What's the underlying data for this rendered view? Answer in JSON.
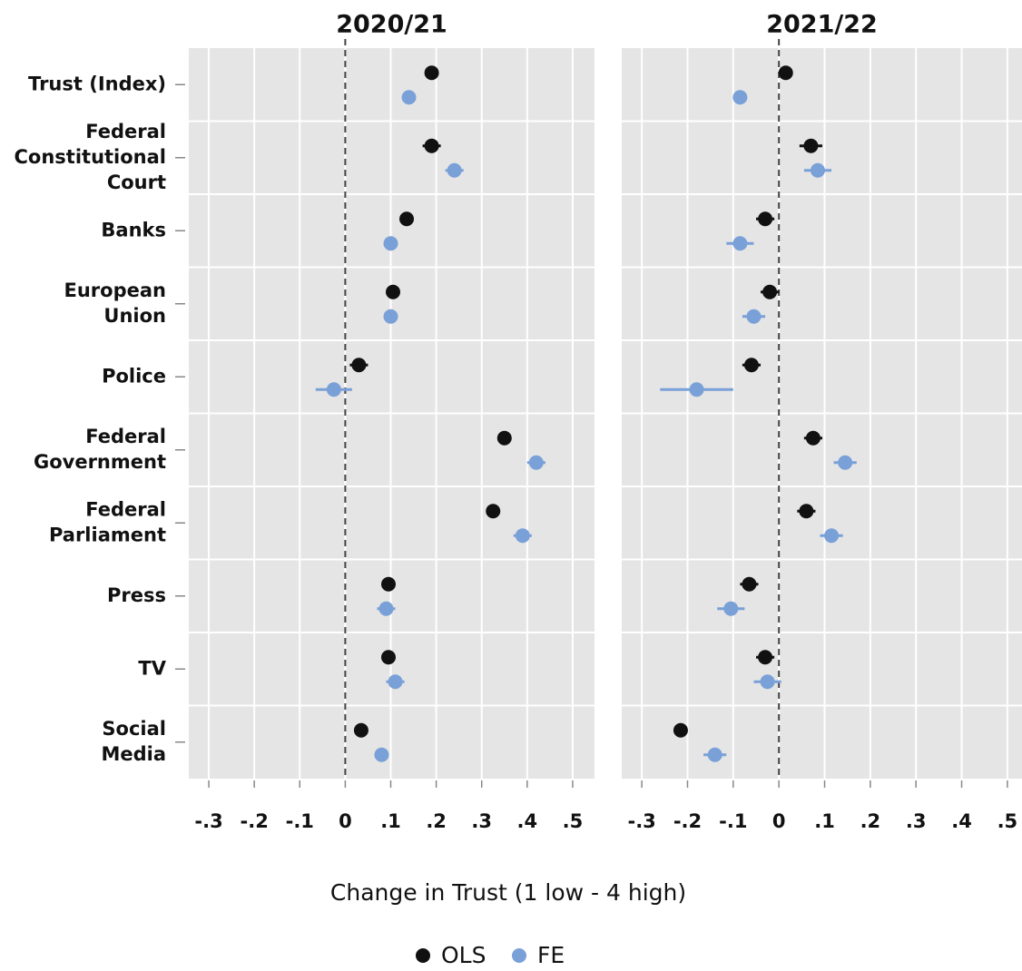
{
  "chart_data": [
    {
      "type": "dot",
      "title": "2020/21",
      "categories": [
        [
          "Trust (Index)"
        ],
        [
          "Federal",
          "Constitutional",
          "Court"
        ],
        [
          "Banks"
        ],
        [
          "European",
          "Union"
        ],
        [
          "Police"
        ],
        [
          "Federal",
          "Government"
        ],
        [
          "Federal",
          "Parliament"
        ],
        [
          "Press"
        ],
        [
          "TV"
        ],
        [
          "Social",
          "Media"
        ]
      ],
      "series": [
        {
          "name": "OLS",
          "color": "#111111",
          "values": [
            0.19,
            0.19,
            0.135,
            0.105,
            0.03,
            0.35,
            0.325,
            0.095,
            0.095,
            0.035
          ],
          "errors": [
            0.01,
            0.02,
            0.015,
            0.015,
            0.02,
            0.015,
            0.015,
            0.015,
            0.015,
            0.015
          ]
        },
        {
          "name": "FE",
          "color": "#7aa0d8",
          "values": [
            0.14,
            0.24,
            0.1,
            0.1,
            -0.025,
            0.42,
            0.39,
            0.09,
            0.11,
            0.08
          ],
          "errors": [
            0.01,
            0.02,
            0.015,
            0.01,
            0.04,
            0.02,
            0.02,
            0.02,
            0.02,
            0.015
          ]
        }
      ],
      "xlim": [
        -0.344,
        0.548
      ],
      "xticks": [
        {
          "value": -0.3,
          "label": "-.3"
        },
        {
          "value": -0.2,
          "label": "-.2"
        },
        {
          "value": -0.1,
          "label": "-.1"
        },
        0,
        {
          "value": 0.1,
          "label": ".1"
        },
        {
          "value": 0.2,
          "label": ".2"
        },
        {
          "value": 0.3,
          "label": ".3"
        },
        {
          "value": 0.4,
          "label": ".4"
        },
        {
          "value": 0.5,
          "label": ".5"
        }
      ],
      "xlabel": "Change in Trust (1 low - 4 high)",
      "grid": true
    },
    {
      "type": "dot",
      "title": "2021/22",
      "series": [
        {
          "color": "#111111",
          "values": [
            0.015,
            0.07,
            -0.03,
            -0.02,
            -0.06,
            0.075,
            0.06,
            -0.065,
            -0.03,
            -0.215
          ],
          "errors": [
            0.01,
            0.025,
            0.02,
            0.02,
            0.02,
            0.02,
            0.02,
            0.02,
            0.02,
            0.015
          ]
        },
        {
          "color": "#7aa0d8",
          "values": [
            -0.085,
            0.085,
            -0.085,
            -0.055,
            -0.18,
            0.145,
            0.115,
            -0.105,
            -0.025,
            -0.14
          ],
          "errors": [
            0.01,
            0.03,
            0.03,
            0.025,
            0.08,
            0.025,
            0.025,
            0.03,
            0.03,
            0.025
          ]
        }
      ],
      "xlim": [
        -0.344,
        0.532
      ],
      "xticks": [
        {
          "value": -0.3,
          "label": "-.3"
        },
        {
          "value": -0.2,
          "label": "-.2"
        },
        {
          "value": -0.1,
          "label": "-.1"
        },
        0,
        {
          "value": 0.1,
          "label": ".1"
        },
        {
          "value": 0.2,
          "label": ".2"
        },
        {
          "value": 0.3,
          "label": ".3"
        },
        {
          "value": 0.4,
          "label": ".4"
        },
        {
          "value": 0.5,
          "label": ".5"
        }
      ],
      "grid": true
    }
  ]
}
